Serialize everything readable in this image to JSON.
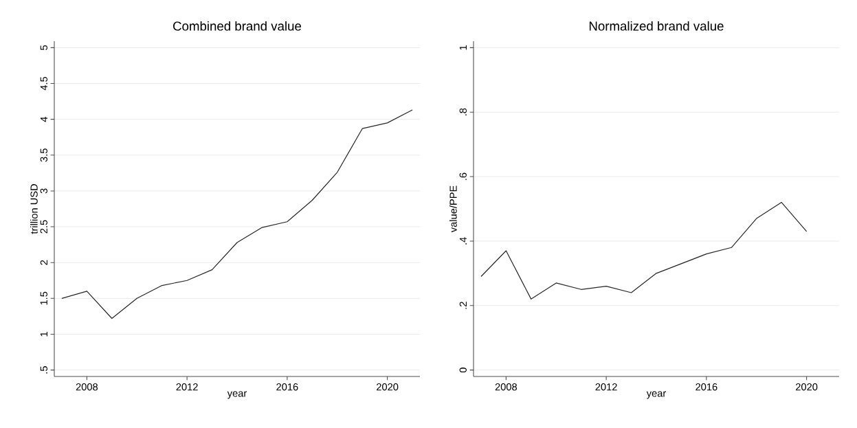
{
  "chart_data": [
    {
      "type": "line",
      "title": "Combined brand value",
      "xlabel": "year",
      "ylabel": "trillion USD",
      "x": [
        2007,
        2008,
        2009,
        2010,
        2011,
        2012,
        2013,
        2014,
        2015,
        2016,
        2017,
        2018,
        2019,
        2020,
        2021
      ],
      "values": [
        1.5,
        1.6,
        1.22,
        1.5,
        1.68,
        1.75,
        1.9,
        2.28,
        2.49,
        2.57,
        2.87,
        3.26,
        3.87,
        3.95,
        4.13
      ],
      "color": "#262626",
      "xlim": [
        2006.7,
        2021.3
      ],
      "ylim": [
        0.41,
        5.09
      ],
      "xticks": [
        2008,
        2012,
        2016,
        2020
      ],
      "yticks": [
        {
          "value": 0.5,
          "label": ".5"
        },
        1,
        1.5,
        2,
        2.5,
        3,
        3.5,
        4,
        4.5,
        5
      ],
      "grid": "y"
    },
    {
      "type": "line",
      "title": "Normalized brand value",
      "xlabel": "year",
      "ylabel": "value/PPE",
      "x": [
        2007,
        2008,
        2009,
        2010,
        2011,
        2012,
        2013,
        2014,
        2015,
        2016,
        2017,
        2018,
        2019,
        2020
      ],
      "values": [
        0.29,
        0.37,
        0.22,
        0.27,
        0.25,
        0.26,
        0.24,
        0.3,
        0.33,
        0.36,
        0.38,
        0.47,
        0.52,
        0.43
      ],
      "color": "#262626",
      "xlim": [
        2006.7,
        2021.3
      ],
      "ylim": [
        -0.02,
        1.02
      ],
      "xticks": [
        2008,
        2012,
        2016,
        2020
      ],
      "yticks": [
        0,
        {
          "value": 0.2,
          "label": ".2"
        },
        {
          "value": 0.4,
          "label": ".4"
        },
        {
          "value": 0.6,
          "label": ".6"
        },
        {
          "value": 0.8,
          "label": ".8"
        },
        1
      ],
      "grid": "y"
    }
  ]
}
